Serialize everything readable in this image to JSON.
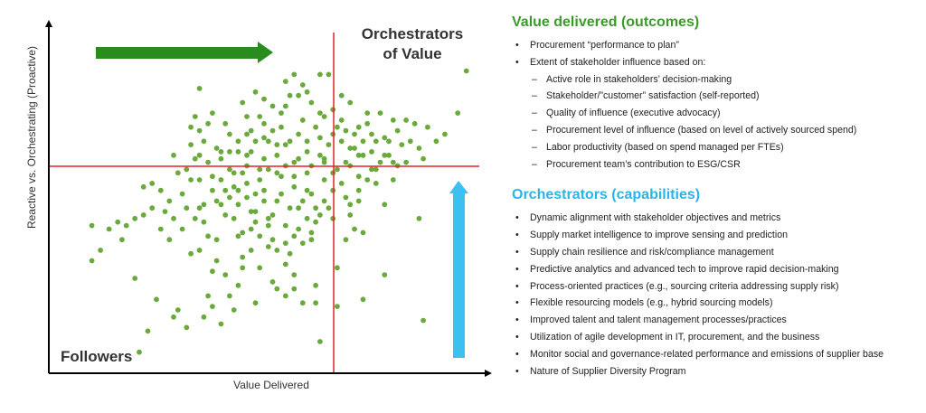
{
  "chart_data": {
    "type": "scatter",
    "title": "",
    "xlabel": "Value Delivered",
    "ylabel": "Reactive vs. Orchestrating (Proactive)",
    "xlim": [
      0,
      100
    ],
    "ylim": [
      0,
      100
    ],
    "threshold_x": 65,
    "threshold_y": 61,
    "quadrant_labels": {
      "top_right": [
        "Orchestrators",
        "of Value"
      ],
      "bottom_left": "Followers"
    },
    "marker_color": "#6aaa3c",
    "threshold_color": "#e0242c",
    "arrow_colors": {
      "horizontal": "#2a8c1e",
      "vertical": "#3cc0f2"
    },
    "points": [
      [
        10,
        42
      ],
      [
        12,
        35
      ],
      [
        10,
        32
      ],
      [
        14,
        41
      ],
      [
        16,
        43
      ],
      [
        17,
        38
      ],
      [
        18,
        42
      ],
      [
        20,
        27
      ],
      [
        22,
        53
      ],
      [
        24,
        54
      ],
      [
        26,
        52
      ],
      [
        28,
        49
      ],
      [
        28,
        38
      ],
      [
        29,
        16
      ],
      [
        30,
        18
      ],
      [
        32,
        13
      ],
      [
        32,
        58
      ],
      [
        33,
        65
      ],
      [
        33,
        70
      ],
      [
        34,
        61
      ],
      [
        35,
        55
      ],
      [
        35,
        47
      ],
      [
        36,
        43
      ],
      [
        37,
        22
      ],
      [
        38,
        19
      ],
      [
        38,
        29
      ],
      [
        39,
        38
      ],
      [
        40,
        14
      ],
      [
        40,
        48
      ],
      [
        41,
        52
      ],
      [
        42,
        58
      ],
      [
        42,
        68
      ],
      [
        43,
        57
      ],
      [
        44,
        48
      ],
      [
        44,
        39
      ],
      [
        45,
        30
      ],
      [
        45,
        77
      ],
      [
        46,
        54
      ],
      [
        46,
        62
      ],
      [
        47,
        69
      ],
      [
        47,
        46
      ],
      [
        48,
        43
      ],
      [
        48,
        51
      ],
      [
        49,
        58
      ],
      [
        49,
        73
      ],
      [
        50,
        67
      ],
      [
        50,
        52
      ],
      [
        51,
        44
      ],
      [
        52,
        38
      ],
      [
        52,
        26
      ],
      [
        53,
        62
      ],
      [
        53,
        49
      ],
      [
        54,
        56
      ],
      [
        54,
        70
      ],
      [
        55,
        65
      ],
      [
        55,
        42
      ],
      [
        56,
        34
      ],
      [
        56,
        79
      ],
      [
        57,
        60
      ],
      [
        57,
        53
      ],
      [
        58,
        47
      ],
      [
        58,
        68
      ],
      [
        59,
        72
      ],
      [
        59,
        82
      ],
      [
        60,
        63
      ],
      [
        60,
        57
      ],
      [
        61,
        51
      ],
      [
        61,
        38
      ],
      [
        62,
        25
      ],
      [
        62,
        43
      ],
      [
        63,
        67
      ],
      [
        63,
        74
      ],
      [
        64,
        55
      ],
      [
        64,
        61
      ],
      [
        65,
        47
      ],
      [
        65,
        85
      ],
      [
        66,
        68
      ],
      [
        66,
        52
      ],
      [
        67,
        58
      ],
      [
        68,
        66
      ],
      [
        68,
        72
      ],
      [
        69,
        60
      ],
      [
        69,
        50
      ],
      [
        70,
        45
      ],
      [
        70,
        77
      ],
      [
        71,
        64
      ],
      [
        72,
        56
      ],
      [
        72,
        49
      ],
      [
        73,
        40
      ],
      [
        73,
        66
      ],
      [
        74,
        71
      ],
      [
        75,
        58
      ],
      [
        75,
        63
      ],
      [
        76,
        54
      ],
      [
        77,
        60
      ],
      [
        78,
        67
      ],
      [
        78,
        48
      ],
      [
        79,
        62
      ],
      [
        80,
        55
      ],
      [
        80,
        72
      ],
      [
        81,
        59
      ],
      [
        82,
        65
      ],
      [
        83,
        60
      ],
      [
        85,
        71
      ],
      [
        86,
        64
      ],
      [
        87,
        61
      ],
      [
        88,
        70
      ],
      [
        90,
        66
      ],
      [
        92,
        68
      ],
      [
        95,
        74
      ],
      [
        97,
        86
      ],
      [
        62,
        20
      ],
      [
        63,
        9
      ],
      [
        59,
        20
      ],
      [
        57,
        28
      ],
      [
        55,
        31
      ],
      [
        53,
        24
      ],
      [
        51,
        36
      ],
      [
        49,
        30
      ],
      [
        47,
        35
      ],
      [
        45,
        33
      ],
      [
        44,
        25
      ],
      [
        42,
        22
      ],
      [
        39,
        32
      ],
      [
        37,
        39
      ],
      [
        35,
        35
      ],
      [
        33,
        34
      ],
      [
        31,
        41
      ],
      [
        29,
        44
      ],
      [
        27,
        46
      ],
      [
        26,
        41
      ],
      [
        24,
        47
      ],
      [
        22,
        45
      ],
      [
        20,
        44
      ],
      [
        44,
        63
      ],
      [
        46,
        73
      ],
      [
        48,
        66
      ],
      [
        50,
        61
      ],
      [
        52,
        69
      ],
      [
        54,
        74
      ],
      [
        56,
        66
      ],
      [
        58,
        61
      ],
      [
        60,
        52
      ],
      [
        62,
        47
      ],
      [
        64,
        49
      ],
      [
        66,
        44
      ],
      [
        68,
        54
      ],
      [
        70,
        59
      ],
      [
        72,
        62
      ],
      [
        67,
        30
      ],
      [
        69,
        38
      ],
      [
        71,
        41
      ],
      [
        73,
        21
      ],
      [
        78,
        28
      ],
      [
        52,
        76
      ],
      [
        55,
        83
      ],
      [
        58,
        79
      ],
      [
        61,
        77
      ],
      [
        63,
        85
      ],
      [
        57,
        85
      ],
      [
        48,
        80
      ],
      [
        50,
        71
      ],
      [
        51,
        66
      ],
      [
        53,
        57
      ],
      [
        46,
        59
      ],
      [
        43,
        53
      ],
      [
        41,
        45
      ],
      [
        39,
        49
      ],
      [
        38,
        56
      ],
      [
        37,
        60
      ],
      [
        36,
        66
      ],
      [
        35,
        69
      ],
      [
        34,
        73
      ],
      [
        33,
        55
      ],
      [
        32,
        47
      ],
      [
        31,
        51
      ],
      [
        30,
        57
      ],
      [
        29,
        62
      ],
      [
        45,
        57
      ],
      [
        47,
        63
      ],
      [
        49,
        55
      ],
      [
        51,
        58
      ],
      [
        53,
        65
      ],
      [
        55,
        59
      ],
      [
        57,
        56
      ],
      [
        59,
        49
      ],
      [
        61,
        59
      ],
      [
        63,
        62
      ],
      [
        65,
        65
      ],
      [
        67,
        70
      ],
      [
        69,
        69
      ],
      [
        71,
        68
      ],
      [
        73,
        62
      ],
      [
        75,
        68
      ],
      [
        77,
        74
      ],
      [
        79,
        66
      ],
      [
        81,
        69
      ],
      [
        83,
        72
      ],
      [
        84,
        66
      ],
      [
        76,
        58
      ],
      [
        74,
        55
      ],
      [
        72,
        52
      ],
      [
        70,
        48
      ],
      [
        66,
        57
      ],
      [
        64,
        60
      ],
      [
        60,
        44
      ],
      [
        58,
        41
      ],
      [
        56,
        47
      ],
      [
        54,
        51
      ],
      [
        52,
        45
      ],
      [
        50,
        49
      ],
      [
        48,
        46
      ],
      [
        46,
        50
      ],
      [
        44,
        52
      ],
      [
        42,
        50
      ],
      [
        40,
        55
      ],
      [
        38,
        52
      ],
      [
        36,
        48
      ],
      [
        34,
        44
      ],
      [
        40,
        61
      ],
      [
        42,
        63
      ],
      [
        44,
        66
      ],
      [
        46,
        68
      ],
      [
        39,
        64
      ],
      [
        41,
        71
      ],
      [
        37,
        71
      ],
      [
        35,
        62
      ],
      [
        43,
        44
      ],
      [
        45,
        40
      ],
      [
        47,
        41
      ],
      [
        49,
        39
      ],
      [
        51,
        42
      ],
      [
        53,
        35
      ],
      [
        55,
        37
      ],
      [
        57,
        39
      ],
      [
        59,
        37
      ],
      [
        61,
        40
      ],
      [
        63,
        45
      ],
      [
        35,
        81
      ],
      [
        38,
        74
      ],
      [
        40,
        63
      ],
      [
        60,
        66
      ],
      [
        62,
        70
      ],
      [
        64,
        73
      ],
      [
        66,
        75
      ],
      [
        68,
        79
      ],
      [
        70,
        64
      ],
      [
        72,
        70
      ],
      [
        74,
        74
      ],
      [
        76,
        66
      ],
      [
        78,
        62
      ],
      [
        80,
        60
      ],
      [
        55,
        22
      ],
      [
        57,
        24
      ],
      [
        48,
        20
      ],
      [
        41,
        28
      ],
      [
        43,
        18
      ],
      [
        36,
        16
      ],
      [
        25,
        21
      ],
      [
        23,
        12
      ],
      [
        21,
        6
      ],
      [
        86,
        44
      ],
      [
        67,
        19
      ],
      [
        87,
        15
      ],
      [
        50,
        78
      ],
      [
        55,
        76
      ],
      [
        60,
        80
      ]
    ]
  },
  "value_section": {
    "title": "Value delivered (outcomes)",
    "bullets": [
      {
        "kind": "bullet",
        "text": "Procurement “performance to plan”"
      },
      {
        "kind": "bullet",
        "text": "Extent of stakeholder influence based on:"
      },
      {
        "kind": "dash",
        "text": "Active role in stakeholders’ decision-making"
      },
      {
        "kind": "dash",
        "text": "Stakeholder/”customer” satisfaction (self-reported)"
      },
      {
        "kind": "dash",
        "text": "Quality of influence (executive advocacy)"
      },
      {
        "kind": "dash",
        "text": "Procurement level of influence (based on level of actively sourced spend)"
      },
      {
        "kind": "dash",
        "text": "Labor productivity (based on spend managed per FTEs)"
      },
      {
        "kind": "dash",
        "text": "Procurement team’s contribution to ESG/CSR"
      }
    ]
  },
  "orch_section": {
    "title": "Orchestrators (capabilities)",
    "bullets": [
      "Dynamic alignment with stakeholder objectives and metrics",
      "Supply market intelligence to improve sensing and prediction",
      "Supply chain resilience and risk/compliance management",
      "Predictive analytics and advanced tech to improve rapid decision-making",
      "Process-oriented practices (e.g., sourcing criteria addressing supply risk)",
      "Flexible resourcing models (e.g., hybrid sourcing models)",
      "Improved talent and talent management processes/practices",
      "Utilization of agile development in IT, procurement, and the business",
      "Monitor social and governance-related performance and emissions of supplier base",
      "Nature of Supplier Diversity Program"
    ]
  }
}
